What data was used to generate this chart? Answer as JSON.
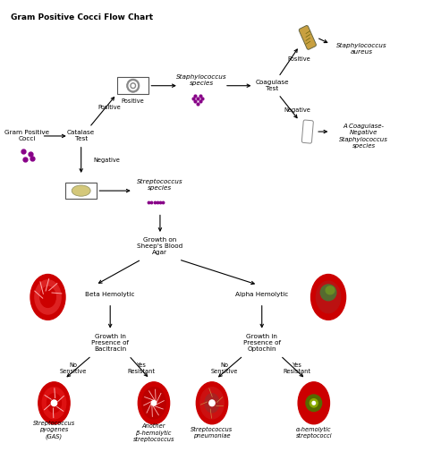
{
  "title": "Gram Positive Cocci Flow Chart",
  "bg_color": "#ffffff",
  "fig_width": 4.74,
  "fig_height": 5.24,
  "dpi": 100,
  "xlim": [
    0,
    10
  ],
  "ylim": [
    0,
    10.5
  ]
}
